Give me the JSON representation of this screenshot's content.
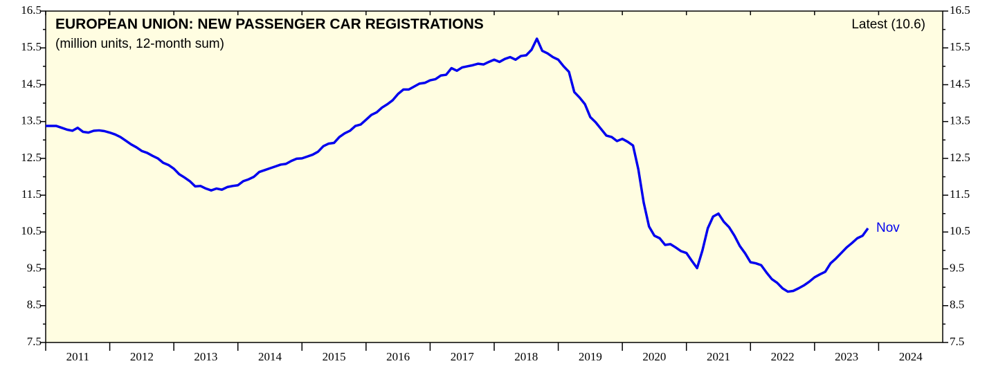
{
  "chart_data": {
    "type": "line",
    "title": "EUROPEAN UNION: NEW PASSENGER CAR REGISTRATIONS",
    "subtitle": "(million units, 12-month sum)",
    "annotations": {
      "latest": "Latest (10.6)",
      "end_label": "Nov"
    },
    "x": [
      "2011-01",
      "2011-02",
      "2011-03",
      "2011-04",
      "2011-05",
      "2011-06",
      "2011-07",
      "2011-08",
      "2011-09",
      "2011-10",
      "2011-11",
      "2011-12",
      "2012-01",
      "2012-02",
      "2012-03",
      "2012-04",
      "2012-05",
      "2012-06",
      "2012-07",
      "2012-08",
      "2012-09",
      "2012-10",
      "2012-11",
      "2012-12",
      "2013-01",
      "2013-02",
      "2013-03",
      "2013-04",
      "2013-05",
      "2013-06",
      "2013-07",
      "2013-08",
      "2013-09",
      "2013-10",
      "2013-11",
      "2013-12",
      "2014-01",
      "2014-02",
      "2014-03",
      "2014-04",
      "2014-05",
      "2014-06",
      "2014-07",
      "2014-08",
      "2014-09",
      "2014-10",
      "2014-11",
      "2014-12",
      "2015-01",
      "2015-02",
      "2015-03",
      "2015-04",
      "2015-05",
      "2015-06",
      "2015-07",
      "2015-08",
      "2015-09",
      "2015-10",
      "2015-11",
      "2015-12",
      "2016-01",
      "2016-02",
      "2016-03",
      "2016-04",
      "2016-05",
      "2016-06",
      "2016-07",
      "2016-08",
      "2016-09",
      "2016-10",
      "2016-11",
      "2016-12",
      "2017-01",
      "2017-02",
      "2017-03",
      "2017-04",
      "2017-05",
      "2017-06",
      "2017-07",
      "2017-08",
      "2017-09",
      "2017-10",
      "2017-11",
      "2017-12",
      "2018-01",
      "2018-02",
      "2018-03",
      "2018-04",
      "2018-05",
      "2018-06",
      "2018-07",
      "2018-08",
      "2018-09",
      "2018-10",
      "2018-11",
      "2018-12",
      "2019-01",
      "2019-02",
      "2019-03",
      "2019-04",
      "2019-05",
      "2019-06",
      "2019-07",
      "2019-08",
      "2019-09",
      "2019-10",
      "2019-11",
      "2019-12",
      "2020-01",
      "2020-02",
      "2020-03",
      "2020-04",
      "2020-05",
      "2020-06",
      "2020-07",
      "2020-08",
      "2020-09",
      "2020-10",
      "2020-11",
      "2020-12",
      "2021-01",
      "2021-02",
      "2021-03",
      "2021-04",
      "2021-05",
      "2021-06",
      "2021-07",
      "2021-08",
      "2021-09",
      "2021-10",
      "2021-11",
      "2021-12",
      "2022-01",
      "2022-02",
      "2022-03",
      "2022-04",
      "2022-05",
      "2022-06",
      "2022-07",
      "2022-08",
      "2022-09",
      "2022-10",
      "2022-11",
      "2022-12",
      "2023-01",
      "2023-02",
      "2023-03",
      "2023-04",
      "2023-05",
      "2023-06",
      "2023-07",
      "2023-08",
      "2023-09",
      "2023-10",
      "2023-11"
    ],
    "series": [
      {
        "name": "New passenger car registrations",
        "color": "#0000ee",
        "values": [
          13.38,
          13.38,
          13.38,
          13.33,
          13.28,
          13.25,
          13.33,
          13.22,
          13.2,
          13.25,
          13.26,
          13.24,
          13.2,
          13.15,
          13.08,
          12.98,
          12.88,
          12.8,
          12.7,
          12.65,
          12.57,
          12.5,
          12.38,
          12.32,
          12.22,
          12.07,
          11.98,
          11.88,
          11.74,
          11.75,
          11.68,
          11.63,
          11.68,
          11.65,
          11.72,
          11.75,
          11.77,
          11.88,
          11.93,
          12.0,
          12.13,
          12.18,
          12.23,
          12.28,
          12.33,
          12.35,
          12.43,
          12.49,
          12.5,
          12.55,
          12.6,
          12.68,
          12.83,
          12.9,
          12.92,
          13.08,
          13.18,
          13.25,
          13.38,
          13.42,
          13.55,
          13.68,
          13.75,
          13.88,
          13.97,
          14.08,
          14.25,
          14.37,
          14.37,
          14.45,
          14.53,
          14.55,
          14.62,
          14.65,
          14.75,
          14.77,
          14.95,
          14.88,
          14.97,
          15.0,
          15.03,
          15.07,
          15.05,
          15.12,
          15.18,
          15.12,
          15.2,
          15.25,
          15.18,
          15.28,
          15.3,
          15.45,
          15.75,
          15.42,
          15.35,
          15.25,
          15.18,
          15.0,
          14.85,
          14.3,
          14.15,
          13.97,
          13.62,
          13.48,
          13.3,
          13.12,
          13.08,
          12.97,
          13.03,
          12.95,
          12.85,
          12.2,
          11.3,
          10.65,
          10.4,
          10.33,
          10.15,
          10.17,
          10.08,
          9.98,
          9.93,
          9.72,
          9.52,
          10.0,
          10.6,
          10.92,
          11.0,
          10.78,
          10.63,
          10.4,
          10.12,
          9.92,
          9.68,
          9.65,
          9.6,
          9.4,
          9.22,
          9.12,
          8.97,
          8.88,
          8.9,
          8.97,
          9.05,
          9.15,
          9.27,
          9.35,
          9.42,
          9.65,
          9.78,
          9.93,
          10.08,
          10.2,
          10.33,
          10.4,
          10.6
        ]
      }
    ],
    "xlim": [
      2011,
      2025
    ],
    "xticks": [
      2011,
      2012,
      2013,
      2014,
      2015,
      2016,
      2017,
      2018,
      2019,
      2020,
      2021,
      2022,
      2023,
      2024
    ],
    "ylim": [
      7.5,
      16.5
    ],
    "yticks": [
      7.5,
      8.5,
      9.5,
      10.5,
      11.5,
      12.5,
      13.5,
      14.5,
      15.5,
      16.5
    ],
    "yminorticks": [
      8,
      9,
      10,
      11,
      12,
      13,
      14,
      15,
      16
    ],
    "background": "#fffde1"
  }
}
